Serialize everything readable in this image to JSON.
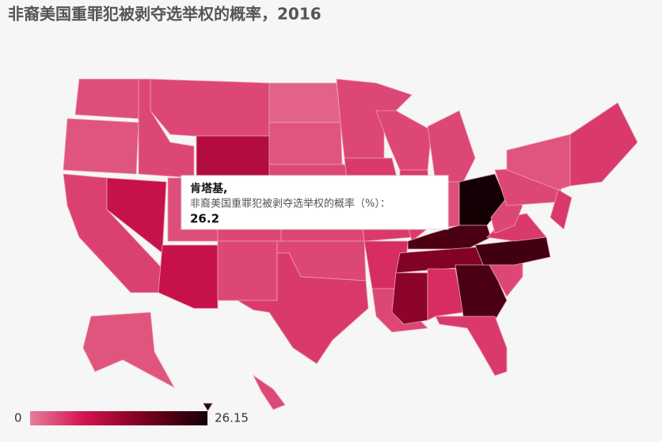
{
  "chart_data": {
    "type": "choropleth",
    "title": "非裔美国重罪犯被剥夺选举权的概率，2016",
    "values": [
      3.5,
      3,
      4.5,
      9,
      4,
      4,
      11,
      3.5,
      9,
      4,
      4,
      2,
      3,
      4,
      4,
      4,
      5,
      4,
      5,
      5,
      6,
      4,
      4,
      5,
      4,
      3.5,
      26.15,
      21,
      16,
      15,
      6,
      21,
      5,
      4,
      22,
      5,
      4,
      4,
      3,
      5,
      5,
      3
    ],
    "colorbar": {
      "min": 0,
      "max": 26.15
    },
    "tooltip": {
      "name": "肯塔基,",
      "label": "非裔美国重罪犯被剥夺选举权的概率（%）：",
      "value": 26.2
    }
  }
}
